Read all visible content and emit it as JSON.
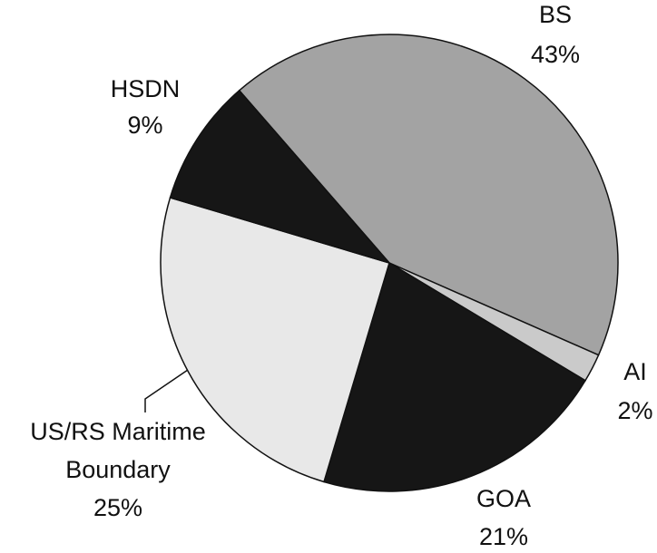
{
  "chart_data": {
    "type": "pie",
    "categories": [
      "BS",
      "AI",
      "GOA",
      "US/RS Maritime Boundary",
      "HSDN"
    ],
    "values": [
      43,
      2,
      21,
      25,
      9
    ],
    "value_labels": [
      "43%",
      "2%",
      "21%",
      "25%",
      "9%"
    ],
    "colors": [
      "#a3a3a3",
      "#cacaca",
      "#161616",
      "#e8e8e8",
      "#161616"
    ]
  }
}
